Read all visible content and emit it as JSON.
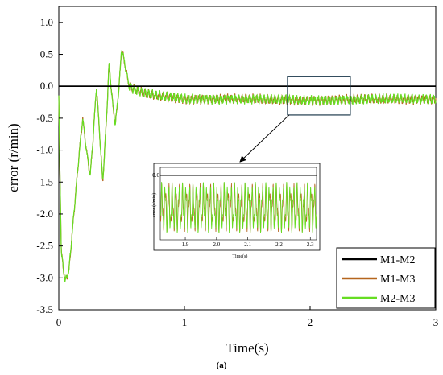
{
  "caption": "(a)",
  "chart_data": {
    "type": "line",
    "xlabel": "Time(s)",
    "ylabel": "error (r/min)",
    "xlim": [
      0,
      3
    ],
    "ylim": [
      -3.5,
      1.25
    ],
    "x_ticks": [
      "0",
      "1",
      "2",
      "3"
    ],
    "y_ticks": [
      "1.0",
      "0.5",
      "0.0",
      "-0.5",
      "-1.0",
      "-1.5",
      "-2.0",
      "-2.5",
      "-3.0",
      "-3.5"
    ],
    "legend_position": "bottom-right",
    "series": [
      {
        "name": "M1-M2",
        "color": "#000000",
        "points": [
          [
            0,
            0
          ],
          [
            3,
            0
          ]
        ]
      },
      {
        "name": "M1-M3",
        "color": "#b5651d",
        "points": [
          [
            0,
            -0.2
          ],
          [
            0.02,
            -2.6
          ],
          [
            0.05,
            -3.05
          ],
          [
            0.08,
            -2.9
          ],
          [
            0.12,
            -2.0
          ],
          [
            0.16,
            -1.1
          ],
          [
            0.19,
            -0.5
          ],
          [
            0.22,
            -1.0
          ],
          [
            0.25,
            -1.4
          ],
          [
            0.27,
            -0.9
          ],
          [
            0.3,
            0.0
          ],
          [
            0.33,
            -0.9
          ],
          [
            0.35,
            -1.5
          ],
          [
            0.38,
            -0.5
          ],
          [
            0.4,
            0.35
          ],
          [
            0.43,
            -0.3
          ],
          [
            0.45,
            -0.6
          ],
          [
            0.48,
            0.0
          ],
          [
            0.5,
            0.6
          ],
          [
            0.53,
            0.3
          ],
          [
            0.56,
            0.0
          ],
          [
            0.6,
            -0.05
          ],
          [
            0.7,
            -0.12
          ],
          [
            0.8,
            -0.15
          ],
          [
            1.0,
            -0.2
          ],
          [
            1.5,
            -0.2
          ],
          [
            2.0,
            -0.22
          ],
          [
            2.5,
            -0.2
          ],
          [
            3.0,
            -0.2
          ]
        ]
      },
      {
        "name": "M2-M3",
        "color": "#66dd22",
        "points": [
          [
            0,
            -0.2
          ],
          [
            0.02,
            -2.6
          ],
          [
            0.05,
            -3.05
          ],
          [
            0.08,
            -2.9
          ],
          [
            0.12,
            -2.0
          ],
          [
            0.16,
            -1.1
          ],
          [
            0.19,
            -0.5
          ],
          [
            0.22,
            -1.0
          ],
          [
            0.25,
            -1.4
          ],
          [
            0.27,
            -0.9
          ],
          [
            0.3,
            0.0
          ],
          [
            0.33,
            -0.9
          ],
          [
            0.35,
            -1.5
          ],
          [
            0.38,
            -0.5
          ],
          [
            0.4,
            0.35
          ],
          [
            0.43,
            -0.3
          ],
          [
            0.45,
            -0.6
          ],
          [
            0.48,
            0.0
          ],
          [
            0.5,
            0.6
          ],
          [
            0.53,
            0.3
          ],
          [
            0.56,
            0.0
          ],
          [
            0.6,
            -0.05
          ],
          [
            0.7,
            -0.12
          ],
          [
            0.8,
            -0.15
          ],
          [
            1.0,
            -0.2
          ],
          [
            1.5,
            -0.2
          ],
          [
            2.0,
            -0.22
          ],
          [
            2.5,
            -0.2
          ],
          [
            3.0,
            -0.2
          ]
        ]
      }
    ],
    "zoom_box": {
      "x": [
        1.82,
        2.32
      ],
      "y": [
        -0.45,
        0.15
      ]
    },
    "inset": {
      "xlim": [
        1.82,
        2.32
      ],
      "ylim": [
        -0.4,
        0.05
      ],
      "x_ticks": [
        "1.9",
        "2.0",
        "2.1",
        "2.2",
        "2.3"
      ],
      "y_ticks": [
        "0.0"
      ],
      "xlabel": "Time(s)",
      "ylabel": "error (r/min)"
    }
  }
}
